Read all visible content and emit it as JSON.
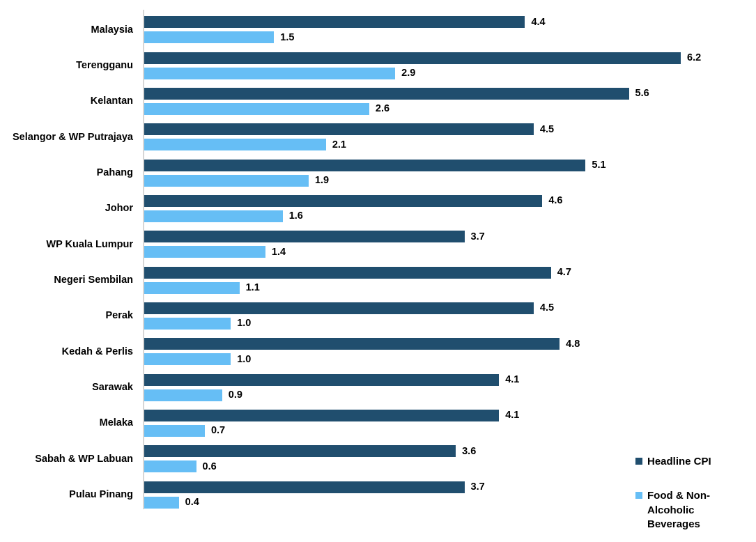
{
  "chart_data": {
    "type": "bar",
    "orientation": "horizontal",
    "title": "",
    "xlabel": "",
    "ylabel": "",
    "xlim": [
      0,
      7.07
    ],
    "grid": false,
    "value_labels": "one-decimal labels at bar ends",
    "legend_position": "bottom-right",
    "axis_line_color": "#D6D6D6",
    "categories": [
      "Malaysia",
      "Terengganu",
      "Kelantan",
      "Selangor & WP Putrajaya",
      "Pahang",
      "Johor",
      "WP Kuala Lumpur",
      "Negeri Sembilan",
      "Perak",
      "Kedah & Perlis",
      "Sarawak",
      "Melaka",
      "Sabah & WP Labuan",
      "Pulau Pinang"
    ],
    "series": [
      {
        "name": "Headline CPI",
        "color": "#204E6E",
        "values": [
          4.4,
          6.2,
          5.6,
          4.5,
          5.1,
          4.6,
          3.7,
          4.7,
          4.5,
          4.8,
          4.1,
          4.1,
          3.6,
          3.7
        ]
      },
      {
        "name": "Food & Non-Alcoholic Beverages",
        "color": "#66BEF5",
        "values": [
          1.5,
          2.9,
          2.6,
          2.1,
          1.9,
          1.6,
          1.4,
          1.1,
          1.0,
          1.0,
          0.9,
          0.7,
          0.6,
          0.4
        ]
      }
    ]
  },
  "legend": {
    "items": [
      {
        "label": "Headline CPI",
        "color": "#204E6E"
      },
      {
        "label": "Food & Non-Alcoholic Beverages",
        "color": "#66BEF5"
      }
    ]
  }
}
